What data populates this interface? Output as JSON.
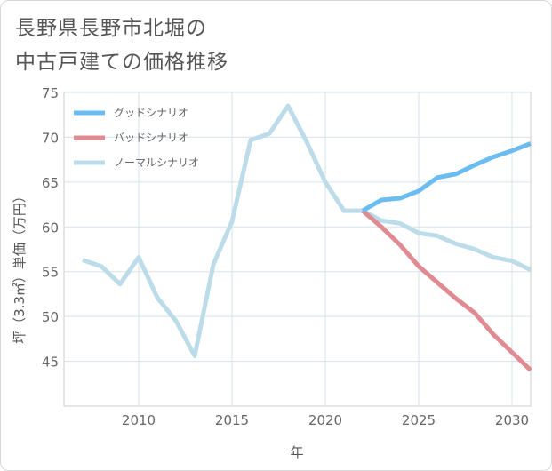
{
  "chart_data": {
    "type": "line",
    "title_lines": [
      "長野県長野市北堀の",
      "中古戸建ての価格推移"
    ],
    "xlabel": "年",
    "ylabel": "坪（3.3㎡）単価（万円）",
    "xlim": [
      2006,
      2031
    ],
    "ylim": [
      40,
      75
    ],
    "xticks": [
      2010,
      2015,
      2020,
      2025,
      2030
    ],
    "yticks": [
      45,
      50,
      55,
      60,
      65,
      70,
      75
    ],
    "grid": true,
    "legend_position": "top-left",
    "series": [
      {
        "name": "グッドシナリオ",
        "color": "#6bbcf1",
        "x": [
          2022,
          2023,
          2024,
          2025,
          2026,
          2027,
          2028,
          2029,
          2030,
          2031
        ],
        "values": [
          61.8,
          63.0,
          63.2,
          64.0,
          65.5,
          65.9,
          66.9,
          67.8,
          68.5,
          69.3
        ]
      },
      {
        "name": "バッドシナリオ",
        "color": "#e08a92",
        "x": [
          2022,
          2023,
          2024,
          2025,
          2026,
          2027,
          2028,
          2029,
          2030,
          2031
        ],
        "values": [
          61.8,
          60.0,
          58.0,
          55.6,
          53.8,
          52.0,
          50.4,
          48.0,
          46.0,
          44.0
        ]
      },
      {
        "name": "ノーマルシナリオ",
        "color": "#bcdcea",
        "x": [
          2007,
          2008,
          2009,
          2010,
          2011,
          2012,
          2013,
          2014,
          2015,
          2016,
          2017,
          2018,
          2019,
          2020,
          2021,
          2022,
          2023,
          2024,
          2025,
          2026,
          2027,
          2028,
          2029,
          2030,
          2031
        ],
        "values": [
          56.3,
          55.6,
          53.6,
          56.6,
          52.1,
          49.5,
          45.6,
          55.8,
          60.6,
          69.7,
          70.4,
          73.5,
          69.5,
          65.0,
          61.8,
          61.8,
          60.7,
          60.4,
          59.3,
          59.0,
          58.1,
          57.5,
          56.6,
          56.2,
          55.2
        ]
      }
    ]
  }
}
